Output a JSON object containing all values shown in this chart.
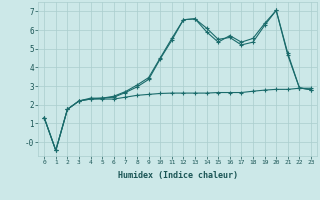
{
  "xlabel": "Humidex (Indice chaleur)",
  "bg_color": "#cce8e8",
  "grid_color": "#aacece",
  "line_color": "#1a6b6b",
  "xlim": [
    -0.5,
    23.5
  ],
  "ylim": [
    -0.75,
    7.5
  ],
  "xticks": [
    0,
    1,
    2,
    3,
    4,
    5,
    6,
    7,
    8,
    9,
    10,
    11,
    12,
    13,
    14,
    15,
    16,
    17,
    18,
    19,
    20,
    21,
    22,
    23
  ],
  "yticks": [
    0,
    1,
    2,
    3,
    4,
    5,
    6,
    7
  ],
  "ytick_labels": [
    "-0",
    "1",
    "2",
    "3",
    "4",
    "5",
    "6",
    "7"
  ],
  "line1_x": [
    0,
    1,
    2,
    3,
    4,
    5,
    6,
    7,
    8,
    9,
    10,
    11,
    12,
    13,
    14,
    15,
    16,
    17,
    18,
    19,
    20,
    21,
    22,
    23
  ],
  "line1_y": [
    1.3,
    -0.45,
    1.75,
    2.2,
    2.35,
    2.35,
    2.45,
    2.7,
    3.05,
    3.45,
    4.5,
    5.55,
    6.55,
    6.6,
    6.1,
    5.5,
    5.6,
    5.2,
    5.35,
    6.25,
    7.05,
    4.75,
    2.9,
    2.8
  ],
  "line2_x": [
    0,
    1,
    2,
    3,
    4,
    5,
    6,
    7,
    8,
    9,
    10,
    11,
    12,
    13,
    14,
    15,
    16,
    17,
    18,
    19,
    20,
    21,
    22,
    23
  ],
  "line2_y": [
    1.3,
    -0.45,
    1.75,
    2.2,
    2.3,
    2.35,
    2.4,
    2.65,
    2.95,
    3.35,
    4.45,
    5.45,
    6.55,
    6.6,
    5.9,
    5.35,
    5.7,
    5.35,
    5.55,
    6.35,
    7.05,
    4.65,
    2.9,
    2.8
  ],
  "line3_x": [
    0,
    1,
    2,
    3,
    4,
    5,
    6,
    7,
    8,
    9,
    10,
    11,
    12,
    13,
    14,
    15,
    16,
    17,
    18,
    19,
    20,
    21,
    22,
    23
  ],
  "line3_y": [
    1.3,
    -0.45,
    1.75,
    2.2,
    2.3,
    2.3,
    2.3,
    2.4,
    2.5,
    2.55,
    2.6,
    2.62,
    2.62,
    2.62,
    2.62,
    2.65,
    2.65,
    2.65,
    2.72,
    2.78,
    2.82,
    2.82,
    2.88,
    2.88
  ]
}
